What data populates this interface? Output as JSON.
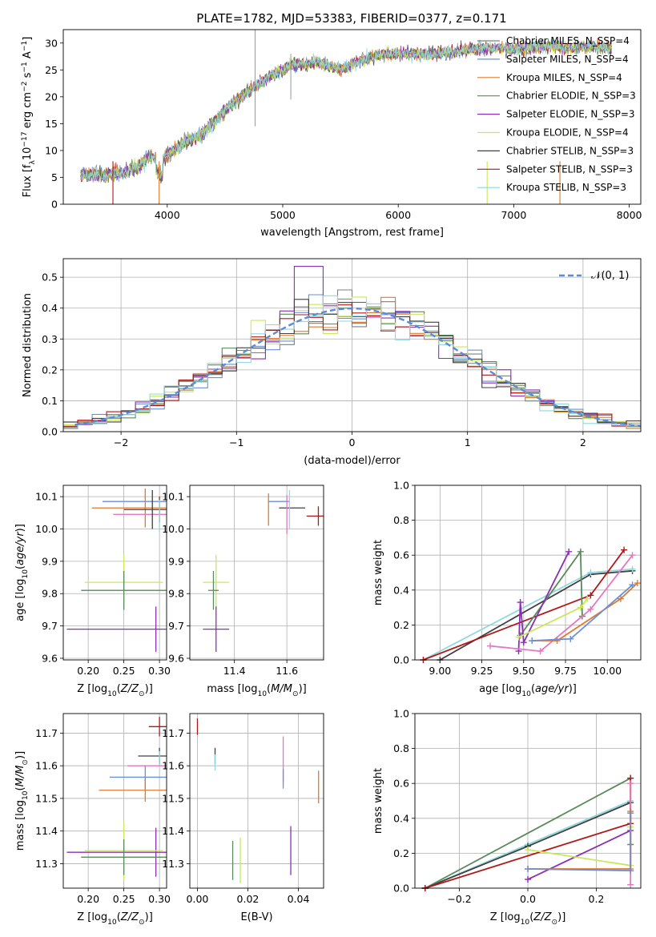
{
  "chart_data": [
    {
      "id": "spectrum",
      "type": "line",
      "title": "PLATE=1782, MJD=53383, FIBERID=0377, z=0.171",
      "xlabel": "wavelength [Angstrom, rest frame]",
      "ylabel": "Flux [f_λ 10^-17 erg cm^-2 s^-1 A^-1]",
      "xlim": [
        3100,
        8100
      ],
      "ylim": [
        0,
        32.5
      ],
      "xticks": [
        "4000",
        "5000",
        "6000",
        "7000",
        "8000"
      ],
      "yticks": [
        "0",
        "5",
        "10",
        "15",
        "20",
        "25",
        "30"
      ],
      "legend_position": "right",
      "series": [
        {
          "name": "Chabrier MILES, N_SSP=4",
          "color": "#7f7f7f"
        },
        {
          "name": "Salpeter MILES, N_SSP=4",
          "color": "#6a8fd8"
        },
        {
          "name": "Kroupa MILES, N_SSP=4",
          "color": "#e0792b"
        },
        {
          "name": "Chabrier ELODIE, N_SSP=3",
          "color": "#5a8a5a"
        },
        {
          "name": "Salpeter ELODIE, N_SSP=3",
          "color": "#8b2fb5"
        },
        {
          "name": "Kroupa ELODIE, N_SSP=4",
          "color": "#c8e85a"
        },
        {
          "name": "Chabrier STELIB, N_SSP=3",
          "color": "#404040"
        },
        {
          "name": "Salpeter STELIB, N_SSP=3",
          "color": "#b01818"
        },
        {
          "name": "Kroupa STELIB, N_SSP=3",
          "color": "#8fd8e0"
        }
      ],
      "continuum": {
        "x": [
          3250,
          3450,
          3600,
          3750,
          3850,
          3950,
          4100,
          4300,
          4500,
          4700,
          4900,
          5100,
          5300,
          5500,
          5700,
          5900,
          6100,
          6300,
          6500,
          6700,
          6900,
          7100,
          7300,
          7500,
          7700,
          7850
        ],
        "y": [
          5.5,
          5.5,
          5.8,
          7,
          9,
          8,
          11,
          13,
          17.5,
          21,
          24,
          26,
          26.5,
          25,
          27,
          28,
          28,
          28,
          28.5,
          29,
          29,
          29,
          29.5,
          29,
          29.5,
          29
        ]
      }
    },
    {
      "id": "residuals",
      "type": "histogram",
      "xlabel": "(data-model)/error",
      "ylabel": "Normed distribution",
      "xlim": [
        -2.5,
        2.5
      ],
      "ylim": [
        0,
        0.56
      ],
      "xticks": [
        "−2",
        "−1",
        "0",
        "1",
        "2"
      ],
      "yticks": [
        "0.0",
        "0.1",
        "0.2",
        "0.3",
        "0.4",
        "0.5"
      ],
      "legend_label": "𝒩(0, 1)",
      "legend_color": "#5b8ad6",
      "bin_width": 0.125
    },
    {
      "id": "z_age",
      "type": "errorbar",
      "xlabel": "Z [log10(Z/Z⊙)]",
      "ylabel": "age [log10(age/yr)]",
      "xlim": [
        0.165,
        0.31
      ],
      "ylim": [
        9.595,
        10.135
      ],
      "xticks": [
        "0.20",
        "0.25",
        "0.30"
      ],
      "yticks": [
        "9.6",
        "9.7",
        "9.8",
        "9.9",
        "10.0",
        "10.1"
      ],
      "points": [
        {
          "color": "#6a8fd8",
          "x": 0.28,
          "xerr": 0.06,
          "y": 10.085,
          "yerr": 0.0
        },
        {
          "color": "#e0792b",
          "x": 0.28,
          "xerr": 0.075,
          "y": 10.065,
          "yerr": 0.06
        },
        {
          "color": "#e377c2",
          "x": 0.29,
          "xerr": 0.055,
          "y": 10.045,
          "yerr": 0.0
        },
        {
          "color": "#404040",
          "x": 0.29,
          "xerr": 0.04,
          "y": 10.06,
          "yerr": 0.06
        },
        {
          "color": "#b01818",
          "x": 0.3,
          "xerr": 0.0,
          "y": 10.06,
          "yerr": 0.04
        },
        {
          "color": "#8fd8e0",
          "x": 0.3,
          "xerr": 0.0,
          "y": 10.04,
          "yerr": 0.05
        },
        {
          "color": "#c8e85a",
          "x": 0.25,
          "xerr": 0.055,
          "y": 9.835,
          "yerr": 0.085
        },
        {
          "color": "#5a8a5a",
          "x": 0.25,
          "xerr": 0.06,
          "y": 9.81,
          "yerr": 0.06
        },
        {
          "color": "#8b2fb5",
          "x": 0.295,
          "xerr": 0.125,
          "y": 9.69,
          "yerr": 0.07
        }
      ]
    },
    {
      "id": "mass_age",
      "type": "errorbar",
      "xlabel": "mass [log10(M/M⊙)]",
      "ylabel": "",
      "xlim": [
        11.23,
        11.74
      ],
      "ylim": [
        9.595,
        10.135
      ],
      "xticks": [
        "11.4",
        "11.6"
      ],
      "yticks": [
        "9.6",
        "9.7",
        "9.8",
        "9.9",
        "10.0",
        "10.1"
      ],
      "points": [
        {
          "color": "#6a8fd8",
          "x": 11.57,
          "xerr": 0.04,
          "y": 10.085,
          "yerr": 0.0
        },
        {
          "color": "#e0792b",
          "x": 11.53,
          "xerr": 0.0,
          "y": 10.06,
          "yerr": 0.05
        },
        {
          "color": "#404040",
          "x": 11.62,
          "xerr": 0.05,
          "y": 10.065,
          "yerr": 0.0
        },
        {
          "color": "#8fd8e0",
          "x": 11.61,
          "xerr": 0.0,
          "y": 10.06,
          "yerr": 0.06
        },
        {
          "color": "#e377c2",
          "x": 11.6,
          "xerr": 0.0,
          "y": 10.045,
          "yerr": 0.06
        },
        {
          "color": "#b01818",
          "x": 11.72,
          "xerr": 0.045,
          "y": 10.04,
          "yerr": 0.03
        },
        {
          "color": "#c8e85a",
          "x": 11.33,
          "xerr": 0.05,
          "y": 9.835,
          "yerr": 0.085
        },
        {
          "color": "#5a8a5a",
          "x": 11.32,
          "xerr": 0.02,
          "y": 9.81,
          "yerr": 0.06
        },
        {
          "color": "#8b2fb5",
          "x": 11.33,
          "xerr": 0.05,
          "y": 9.69,
          "yerr": 0.07
        }
      ]
    },
    {
      "id": "age_weight",
      "type": "line",
      "xlabel": "age [log10(age/yr)]",
      "ylabel": "mass weight",
      "xlim": [
        8.85,
        10.2
      ],
      "ylim": [
        0,
        1
      ],
      "xticks": [
        "9.00",
        "9.25",
        "9.50",
        "9.75",
        "10.00"
      ],
      "yticks": [
        "0.0",
        "0.2",
        "0.4",
        "0.6",
        "0.8",
        "1.0"
      ],
      "series": [
        {
          "color": "#404040",
          "points": [
            [
              9.0,
              0.0
            ],
            [
              9.9,
              0.49
            ],
            [
              10.15,
              0.51
            ]
          ]
        },
        {
          "color": "#8fd8e0",
          "points": [
            [
              8.9,
              0.0
            ],
            [
              9.9,
              0.5
            ],
            [
              10.15,
              0.52
            ]
          ]
        },
        {
          "color": "#b01818",
          "points": [
            [
              8.9,
              0.0
            ],
            [
              9.9,
              0.37
            ],
            [
              10.1,
              0.63
            ]
          ]
        },
        {
          "color": "#5a8a5a",
          "points": [
            [
              9.48,
              0.14
            ],
            [
              9.84,
              0.62
            ],
            [
              9.85,
              0.25
            ]
          ]
        },
        {
          "color": "#8b2fb5",
          "points": [
            [
              9.47,
              0.05
            ],
            [
              9.48,
              0.33
            ],
            [
              9.5,
              0.1
            ],
            [
              9.77,
              0.62
            ]
          ]
        },
        {
          "color": "#c8e85a",
          "points": [
            [
              9.47,
              0.13
            ],
            [
              9.84,
              0.3
            ],
            [
              9.88,
              0.35
            ]
          ]
        },
        {
          "color": "#e377c2",
          "points": [
            [
              9.3,
              0.08
            ],
            [
              9.6,
              0.05
            ],
            [
              9.9,
              0.29
            ],
            [
              10.15,
              0.6
            ]
          ]
        },
        {
          "color": "#e0792b",
          "points": [
            [
              9.55,
              0.11
            ],
            [
              9.7,
              0.11
            ],
            [
              10.08,
              0.35
            ],
            [
              10.18,
              0.44
            ]
          ]
        },
        {
          "color": "#6a8fd8",
          "points": [
            [
              9.55,
              0.11
            ],
            [
              9.78,
              0.12
            ],
            [
              10.15,
              0.43
            ]
          ]
        }
      ]
    },
    {
      "id": "z_mass",
      "type": "errorbar",
      "xlabel": "Z [log10(Z/Z⊙)]",
      "ylabel": "mass [log10(M/M⊙)]",
      "xlim": [
        0.165,
        0.31
      ],
      "ylim": [
        11.225,
        11.76
      ],
      "xticks": [
        "0.20",
        "0.25",
        "0.30"
      ],
      "yticks": [
        "11.3",
        "11.4",
        "11.5",
        "11.6",
        "11.7"
      ],
      "points": [
        {
          "color": "#b01818",
          "x": 0.3,
          "xerr": 0.015,
          "y": 11.72,
          "yerr": 0.03
        },
        {
          "color": "#404040",
          "x": 0.3,
          "xerr": 0.03,
          "y": 11.63,
          "yerr": 0.025
        },
        {
          "color": "#8fd8e0",
          "x": 0.3,
          "xerr": 0.0,
          "y": 11.62,
          "yerr": 0.025
        },
        {
          "color": "#e377c2",
          "x": 0.3,
          "xerr": 0.045,
          "y": 11.6,
          "yerr": 0.0
        },
        {
          "color": "#6a8fd8",
          "x": 0.28,
          "xerr": 0.05,
          "y": 11.565,
          "yerr": 0.035
        },
        {
          "color": "#e0792b",
          "x": 0.28,
          "xerr": 0.065,
          "y": 11.525,
          "yerr": 0.035
        },
        {
          "color": "#8b2fb5",
          "x": 0.295,
          "xerr": 0.125,
          "y": 11.335,
          "yerr": 0.075
        },
        {
          "color": "#c8e85a",
          "x": 0.25,
          "xerr": 0.055,
          "y": 11.34,
          "yerr": 0.09
        },
        {
          "color": "#5a8a5a",
          "x": 0.25,
          "xerr": 0.06,
          "y": 11.32,
          "yerr": 0.055
        }
      ]
    },
    {
      "id": "ebv_mass",
      "type": "errorbar",
      "xlabel": "E(B-V)",
      "ylabel": "",
      "xlim": [
        -0.003,
        0.05
      ],
      "ylim": [
        11.225,
        11.76
      ],
      "xticks": [
        "0.00",
        "0.02",
        "0.04"
      ],
      "yticks": [
        "11.3",
        "11.4",
        "11.5",
        "11.6",
        "11.7"
      ],
      "points": [
        {
          "color": "#b01818",
          "x": 0.0,
          "xerr": 0.0,
          "y": 11.72,
          "yerr": 0.025
        },
        {
          "color": "#404040",
          "x": 0.007,
          "xerr": 0.0,
          "y": 11.63,
          "yerr": 0.025
        },
        {
          "color": "#8fd8e0",
          "x": 0.007,
          "xerr": 0.0,
          "y": 11.61,
          "yerr": 0.025
        },
        {
          "color": "#e377c2",
          "x": 0.034,
          "xerr": 0.0,
          "y": 11.62,
          "yerr": 0.07
        },
        {
          "color": "#6a8fd8",
          "x": 0.034,
          "xerr": 0.0,
          "y": 11.56,
          "yerr": 0.03
        },
        {
          "color": "#e0792b",
          "x": 0.048,
          "xerr": 0.0,
          "y": 11.535,
          "yerr": 0.05
        },
        {
          "color": "#5a8a5a",
          "x": 0.014,
          "xerr": 0.0,
          "y": 11.31,
          "yerr": 0.06
        },
        {
          "color": "#c8e85a",
          "x": 0.017,
          "xerr": 0.0,
          "y": 11.31,
          "yerr": 0.07
        },
        {
          "color": "#8b2fb5",
          "x": 0.037,
          "xerr": 0.0,
          "y": 11.34,
          "yerr": 0.075
        }
      ]
    },
    {
      "id": "z_weight",
      "type": "line",
      "xlabel": "Z [log10(Z/Z⊙)]",
      "ylabel": "mass weight",
      "xlim": [
        -0.33,
        0.33
      ],
      "ylim": [
        0,
        1
      ],
      "xticks": [
        "−0.2",
        "0.0",
        "0.2"
      ],
      "yticks": [
        "0.0",
        "0.2",
        "0.4",
        "0.6",
        "0.8",
        "1.0"
      ],
      "series": [
        {
          "color": "#5a8a5a",
          "points": [
            [
              -0.3,
              0.0
            ],
            [
              0.3,
              0.63
            ],
            [
              0.3,
              0.25
            ]
          ]
        },
        {
          "color": "#8fd8e0",
          "points": [
            [
              -0.3,
              0.0
            ],
            [
              0.0,
              0.25
            ],
            [
              0.3,
              0.5
            ]
          ]
        },
        {
          "color": "#404040",
          "points": [
            [
              -0.3,
              0.0
            ],
            [
              0.0,
              0.24
            ],
            [
              0.3,
              0.49
            ]
          ]
        },
        {
          "color": "#b01818",
          "points": [
            [
              -0.3,
              0.0
            ],
            [
              0.3,
              0.37
            ],
            [
              0.3,
              0.63
            ]
          ]
        },
        {
          "color": "#8b2fb5",
          "points": [
            [
              0.0,
              0.05
            ],
            [
              0.3,
              0.33
            ],
            [
              0.3,
              0.1
            ]
          ]
        },
        {
          "color": "#c8e85a",
          "points": [
            [
              0.0,
              0.22
            ],
            [
              0.3,
              0.13
            ],
            [
              0.3,
              0.35
            ]
          ]
        },
        {
          "color": "#e377c2",
          "points": [
            [
              0.3,
              0.02
            ],
            [
              0.3,
              0.6
            ]
          ]
        },
        {
          "color": "#e0792b",
          "points": [
            [
              0.0,
              0.11
            ],
            [
              0.3,
              0.11
            ],
            [
              0.3,
              0.44
            ]
          ]
        },
        {
          "color": "#6a8fd8",
          "points": [
            [
              0.0,
              0.11
            ],
            [
              0.3,
              0.1
            ],
            [
              0.3,
              0.43
            ]
          ]
        }
      ]
    }
  ]
}
